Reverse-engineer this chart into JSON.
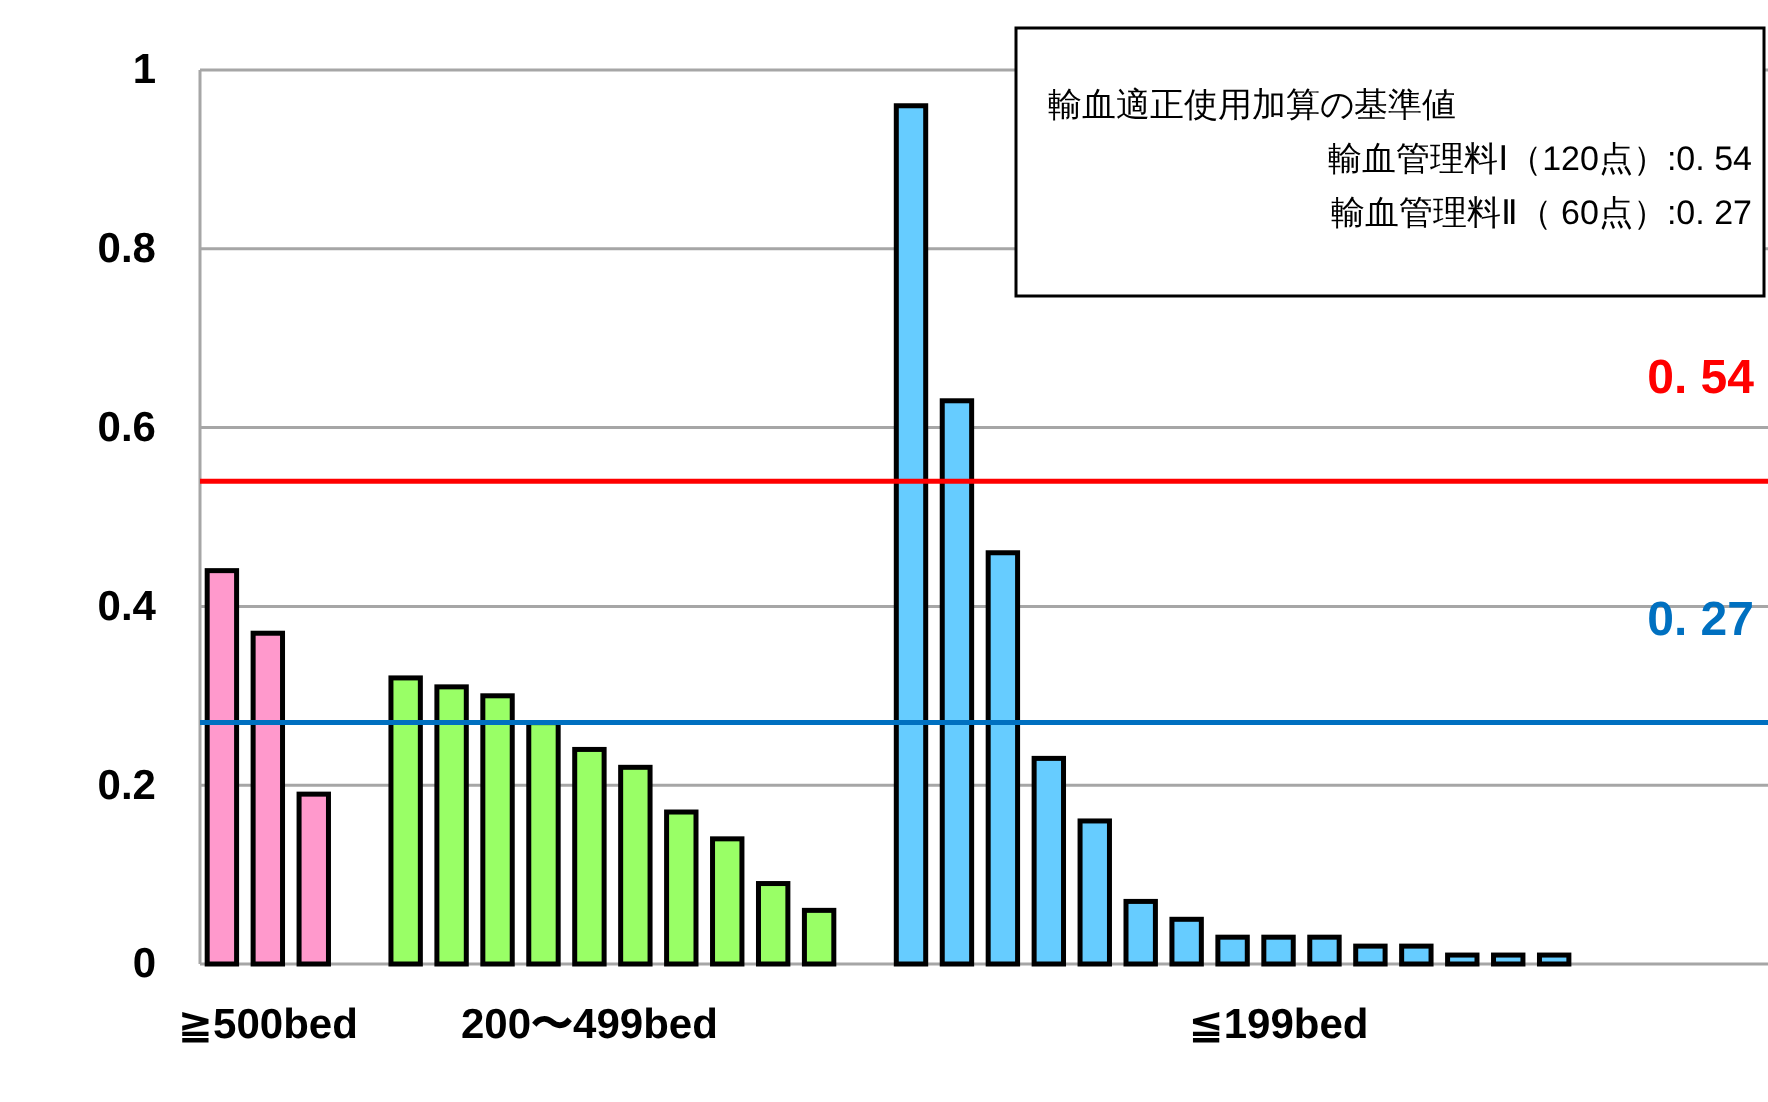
{
  "chart_data": {
    "type": "bar",
    "categories": [
      null,
      "≧500bed",
      null,
      null,
      null,
      null,
      null,
      null,
      "200〜499bed",
      null,
      null,
      null,
      null,
      null,
      null,
      null,
      null,
      null,
      null,
      null,
      null,
      null,
      null,
      "≦199bed",
      null,
      null,
      null,
      null,
      null,
      null,
      null
    ],
    "values": [
      0.44,
      0.37,
      0.19,
      null,
      0.32,
      0.31,
      0.3,
      0.27,
      0.24,
      0.22,
      0.17,
      0.14,
      0.09,
      0.06,
      null,
      0.96,
      0.63,
      0.46,
      0.23,
      0.16,
      0.07,
      0.05,
      0.03,
      0.03,
      0.03,
      0.02,
      0.02,
      0.01,
      0.01,
      0.01,
      null
    ],
    "colors": [
      "#ff99cc",
      "#ff99cc",
      "#ff99cc",
      null,
      "#99ff66",
      "#99ff66",
      "#99ff66",
      "#99ff66",
      "#99ff66",
      "#99ff66",
      "#99ff66",
      "#99ff66",
      "#99ff66",
      "#99ff66",
      null,
      "#66ccff",
      "#66ccff",
      "#66ccff",
      "#66ccff",
      "#66ccff",
      "#66ccff",
      "#66ccff",
      "#66ccff",
      "#66ccff",
      "#66ccff",
      "#66ccff",
      "#66ccff",
      "#66ccff",
      "#66ccff",
      "#66ccff",
      null
    ],
    "ylim": [
      0,
      1
    ],
    "yticks": [
      0,
      0.2,
      0.4,
      0.6,
      0.8,
      1
    ],
    "grid": "y",
    "ref_lines": [
      {
        "axis": "y",
        "value": 0.54,
        "label": "0. 54",
        "color": "#ff0000"
      },
      {
        "axis": "y",
        "value": 0.27,
        "label": "0. 27",
        "color": "#0070c0"
      }
    ],
    "annotations": [
      "輸血適正使用加算の基準値",
      "輸血管理料Ⅰ（120点）:0. 54",
      "輸血管理料Ⅱ（ 60点）:0. 27"
    ]
  }
}
